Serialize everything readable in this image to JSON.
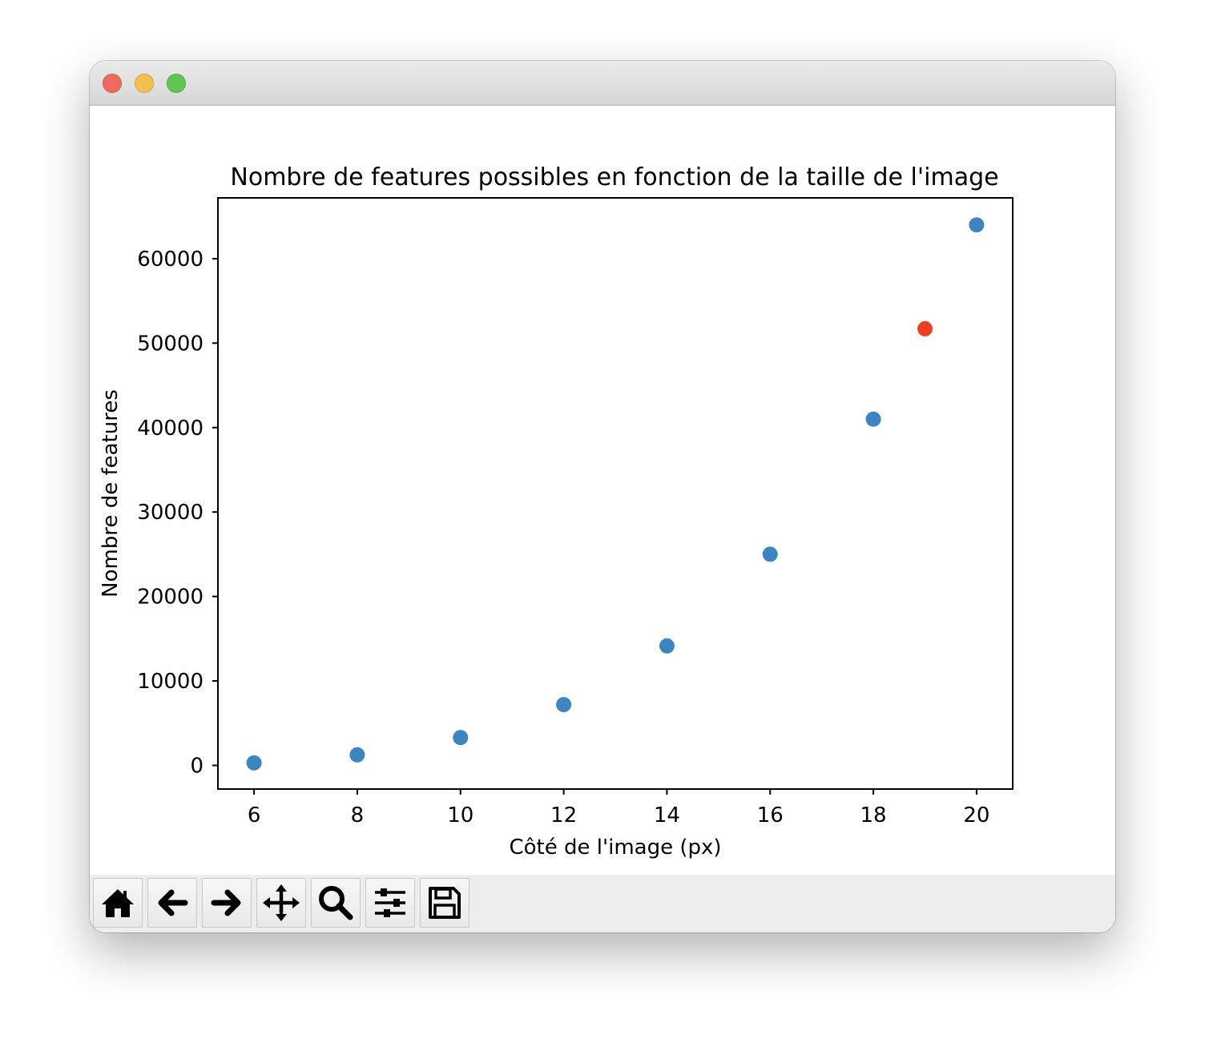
{
  "chart_data": {
    "type": "scatter",
    "title": "Nombre de features possibles en fonction de la taille de l'image",
    "xlabel": "Côté de l'image (px)",
    "ylabel": "Nombre de features",
    "xlim": [
      5.3,
      20.7
    ],
    "ylim": [
      -2800,
      67200
    ],
    "xticks": [
      6,
      8,
      10,
      12,
      14,
      16,
      18,
      20
    ],
    "yticks": [
      0,
      10000,
      20000,
      30000,
      40000,
      50000,
      60000
    ],
    "grid": false,
    "series": [
      {
        "color": "#3d85c0",
        "points": [
          {
            "x": 6,
            "y": 300
          },
          {
            "x": 8,
            "y": 1250
          },
          {
            "x": 10,
            "y": 3300
          },
          {
            "x": 12,
            "y": 7200
          },
          {
            "x": 14,
            "y": 14150
          },
          {
            "x": 16,
            "y": 25000
          },
          {
            "x": 18,
            "y": 41000
          },
          {
            "x": 20,
            "y": 64000
          }
        ]
      },
      {
        "color": "#f03e25",
        "points": [
          {
            "x": 19,
            "y": 51700
          }
        ]
      }
    ]
  },
  "toolbar": {
    "tools": [
      {
        "name": "home",
        "icon": "home-icon"
      },
      {
        "name": "back",
        "icon": "arrow-left-icon"
      },
      {
        "name": "forward",
        "icon": "arrow-right-icon"
      },
      {
        "name": "pan",
        "icon": "move-icon"
      },
      {
        "name": "zoom",
        "icon": "magnifier-icon"
      },
      {
        "name": "configure-subplots",
        "icon": "sliders-icon"
      },
      {
        "name": "save",
        "icon": "floppy-disk-icon"
      }
    ]
  }
}
